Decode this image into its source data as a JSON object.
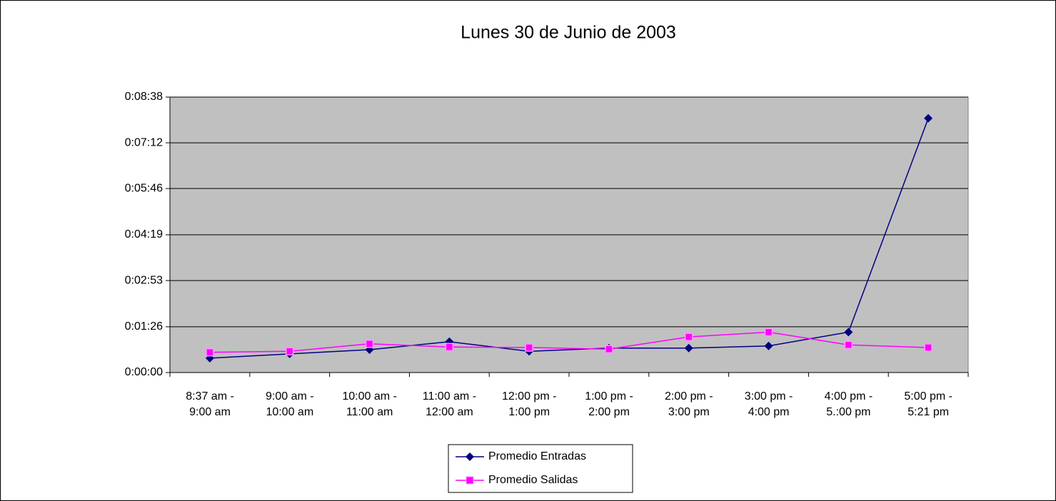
{
  "chart_data": {
    "type": "line",
    "title": "Lunes 30 de Junio de 2003",
    "categories": [
      "8:37 am -\n9:00 am",
      "9:00 am -\n10:00 am",
      "10:00 am -\n11:00 am",
      "11:00 am -\n12:00 am",
      "12:00 pm -\n1:00 pm",
      "1:00 pm -\n2:00 pm",
      "2:00 pm -\n3:00 pm",
      "3:00 pm -\n4:00 pm",
      "4:00 pm -\n5.:00 pm",
      "5:00 pm -\n5:21 pm"
    ],
    "series": [
      {
        "name": "Promedio Entradas",
        "color": "#000080",
        "marker": "diamond",
        "values": [
          27,
          35,
          43,
          58,
          40,
          46,
          46,
          50,
          76,
          478
        ]
      },
      {
        "name": "Promedio Salidas",
        "color": "#ff00ff",
        "marker": "square",
        "values": [
          38,
          40,
          54,
          48,
          47,
          44,
          67,
          76,
          52,
          47
        ]
      }
    ],
    "ylim": [
      0,
      518
    ],
    "yticks": [
      {
        "value": 0,
        "label": "0:00:00"
      },
      {
        "value": 86,
        "label": "0:01:26"
      },
      {
        "value": 173,
        "label": "0:02:53"
      },
      {
        "value": 259,
        "label": "0:04:19"
      },
      {
        "value": 346,
        "label": "0:05:46"
      },
      {
        "value": 432,
        "label": "0:07:12"
      },
      {
        "value": 518,
        "label": "0:08:38"
      }
    ],
    "grid": true,
    "legend": "bottom",
    "plot_background": "#c0c0c0"
  }
}
